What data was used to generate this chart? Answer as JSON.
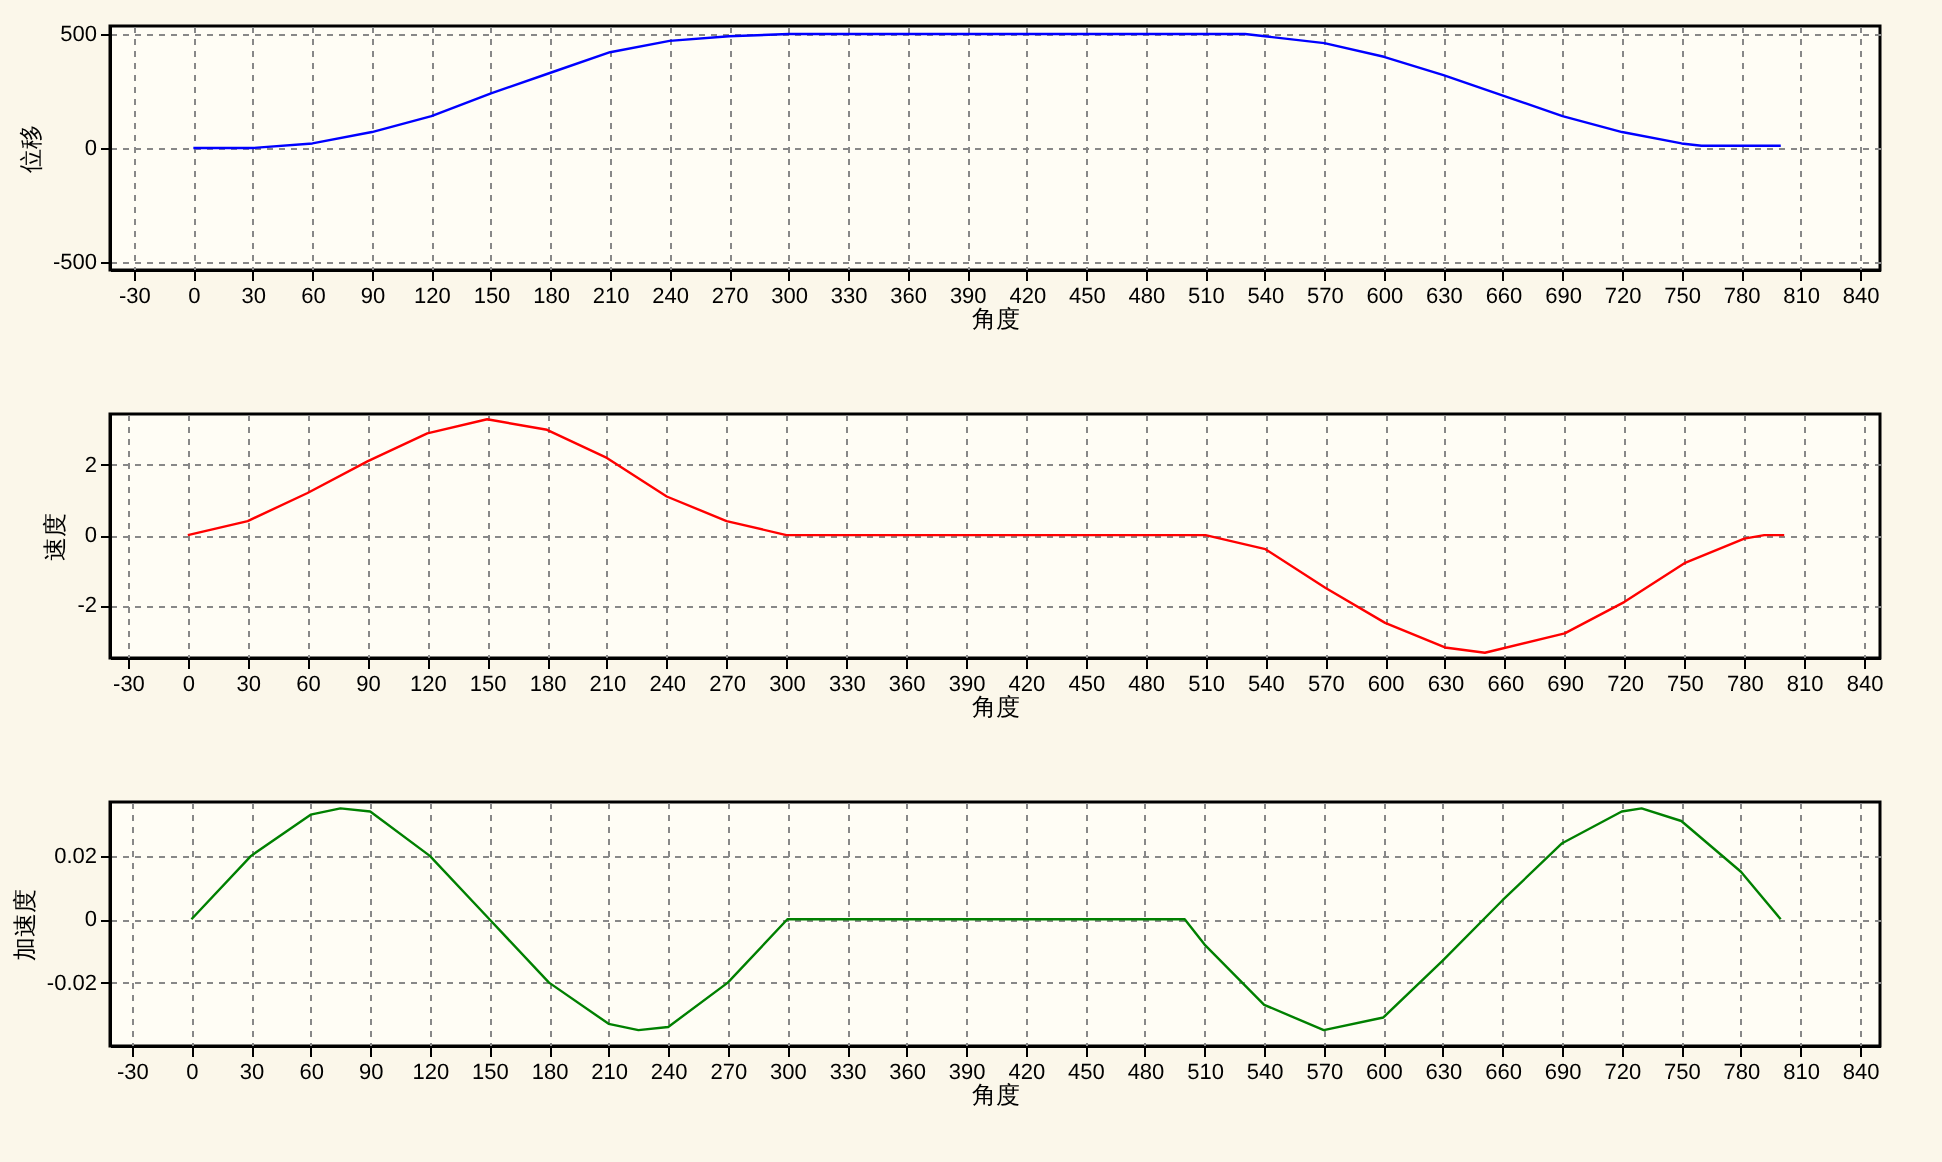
{
  "chart_data": [
    {
      "type": "line",
      "xlabel": "角度",
      "ylabel": "位移",
      "xlim": [
        -42,
        850
      ],
      "ylim": [
        -535,
        535
      ],
      "xticks": [
        -30,
        0,
        30,
        60,
        90,
        120,
        150,
        180,
        210,
        240,
        270,
        300,
        330,
        360,
        390,
        420,
        450,
        480,
        510,
        540,
        570,
        600,
        630,
        660,
        690,
        720,
        750,
        780,
        810,
        840
      ],
      "yticks": [
        -500,
        0,
        500
      ],
      "grid": true,
      "line_style": "solid",
      "x": [
        0,
        30,
        60,
        90,
        120,
        150,
        180,
        210,
        240,
        270,
        300,
        360,
        420,
        480,
        530,
        540,
        570,
        600,
        630,
        660,
        690,
        720,
        750,
        760,
        780,
        800
      ],
      "series": [
        {
          "color": "#0000ff",
          "values": [
            0,
            0,
            20,
            70,
            140,
            240,
            330,
            420,
            470,
            490,
            500,
            500,
            500,
            500,
            500,
            490,
            460,
            400,
            320,
            230,
            140,
            70,
            20,
            10,
            10,
            10
          ]
        }
      ]
    },
    {
      "type": "line",
      "xlabel": "角度",
      "ylabel": "速度",
      "xlim": [
        -39,
        848
      ],
      "ylim": [
        -3.5,
        3.45
      ],
      "xticks": [
        -30,
        0,
        30,
        60,
        90,
        120,
        150,
        180,
        210,
        240,
        270,
        300,
        330,
        360,
        390,
        420,
        450,
        480,
        510,
        540,
        570,
        600,
        630,
        660,
        690,
        720,
        750,
        780,
        810,
        840
      ],
      "yticks": [
        -2,
        0,
        2
      ],
      "grid": true,
      "line_style": "solid",
      "x": [
        0,
        30,
        60,
        90,
        120,
        150,
        180,
        210,
        240,
        270,
        300,
        360,
        420,
        480,
        510,
        540,
        570,
        600,
        630,
        650,
        690,
        720,
        750,
        780,
        790,
        800
      ],
      "series": [
        {
          "color": "#ff0000",
          "values": [
            0,
            0.4,
            1.2,
            2.1,
            2.9,
            3.3,
            3.0,
            2.2,
            1.1,
            0.4,
            0,
            0,
            0,
            0,
            0,
            -0.4,
            -1.5,
            -2.5,
            -3.2,
            -3.35,
            -2.8,
            -1.9,
            -0.8,
            -0.1,
            0,
            0
          ]
        }
      ]
    },
    {
      "type": "line",
      "xlabel": "角度",
      "ylabel": "加速度",
      "xlim": [
        -41,
        850
      ],
      "ylim": [
        -0.04,
        0.037
      ],
      "xticks": [
        -30,
        0,
        30,
        60,
        90,
        120,
        150,
        180,
        210,
        240,
        270,
        300,
        330,
        360,
        390,
        420,
        450,
        480,
        510,
        540,
        570,
        600,
        630,
        660,
        690,
        720,
        750,
        780,
        810,
        840
      ],
      "yticks": [
        {
          "value": -0.02,
          "label": "-0.02"
        },
        0,
        {
          "value": 0.02,
          "label": "0.02"
        }
      ],
      "grid": true,
      "line_style": "solid",
      "x": [
        0,
        30,
        60,
        75,
        90,
        120,
        150,
        180,
        210,
        225,
        240,
        270,
        300,
        360,
        420,
        500,
        510,
        540,
        570,
        600,
        630,
        660,
        690,
        720,
        730,
        750,
        780,
        800
      ],
      "series": [
        {
          "color": "#008000",
          "values": [
            0,
            0.02,
            0.033,
            0.035,
            0.034,
            0.02,
            0,
            -0.02,
            -0.033,
            -0.035,
            -0.034,
            -0.02,
            0,
            0,
            0,
            0,
            -0.008,
            -0.027,
            -0.035,
            -0.031,
            -0.013,
            0.006,
            0.024,
            0.034,
            0.035,
            0.031,
            0.015,
            0
          ]
        }
      ]
    }
  ]
}
